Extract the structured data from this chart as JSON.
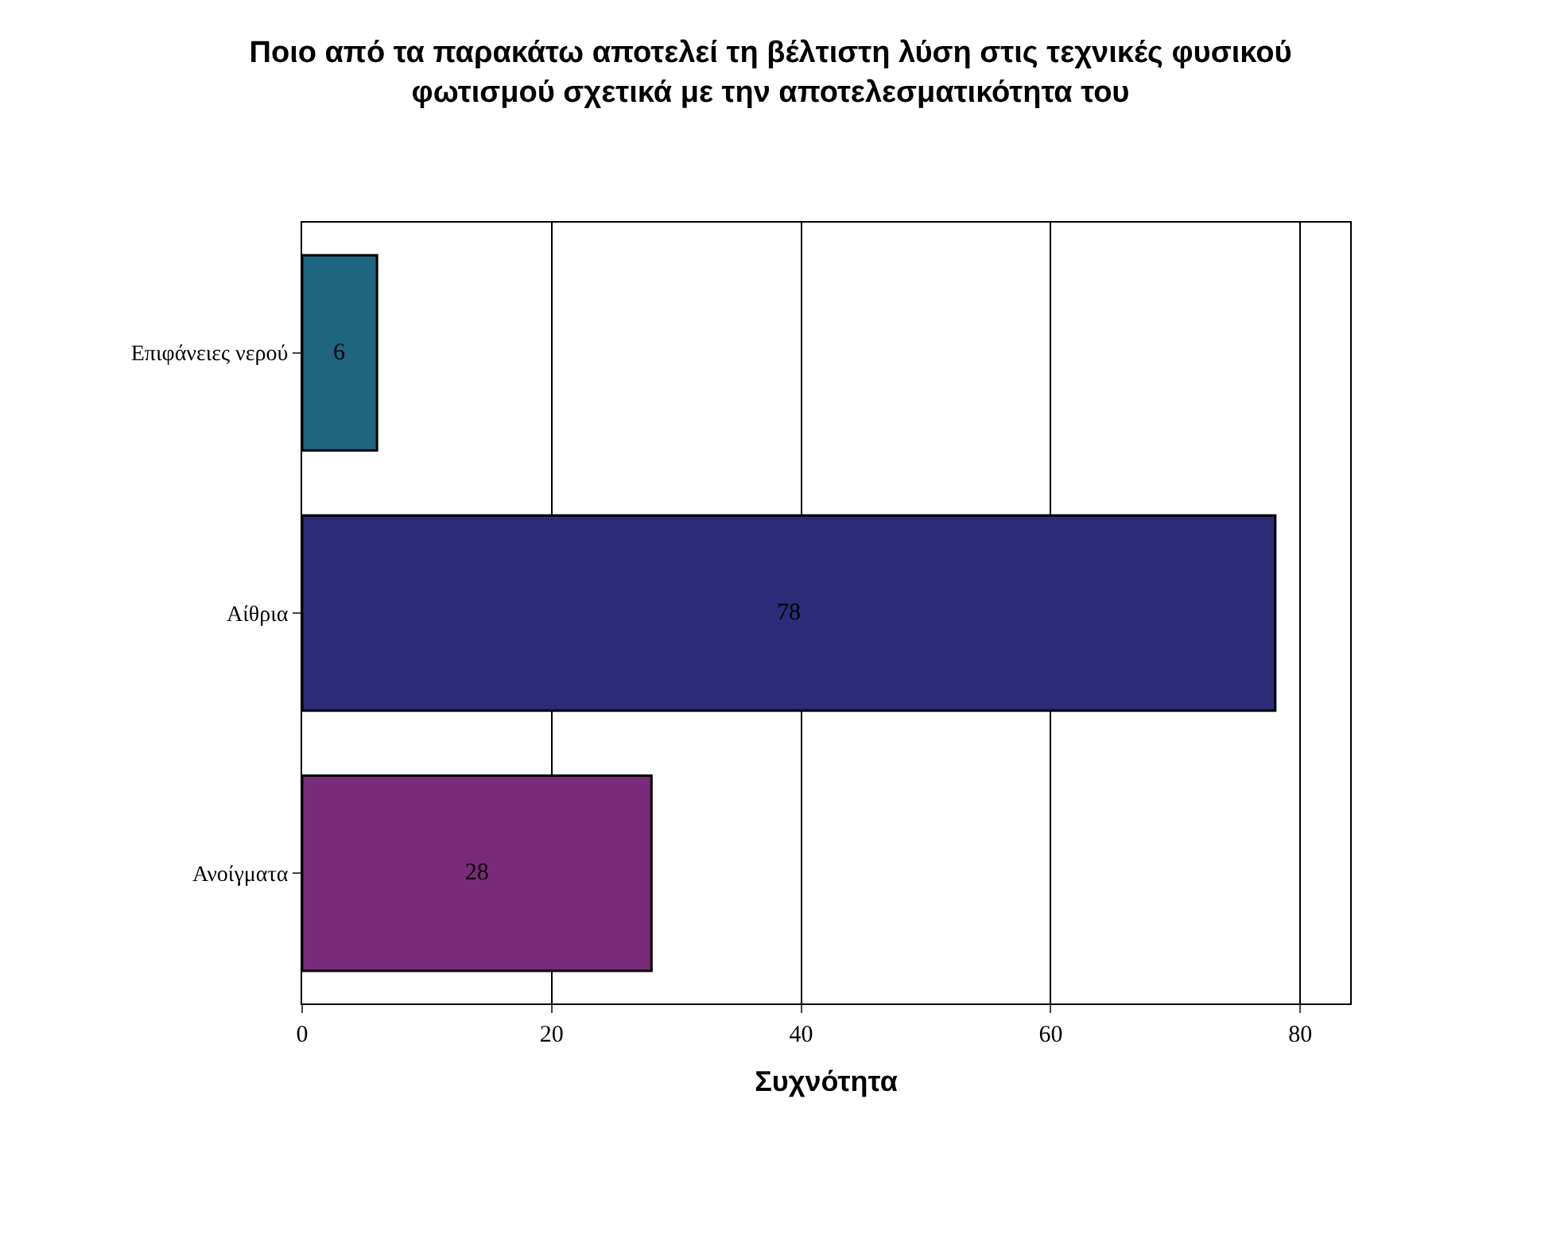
{
  "chart_data": {
    "type": "bar",
    "orientation": "horizontal",
    "title": "Ποιο από τα παρακάτω αποτελεί τη βέλτιστη λύση στις τεχνικές φυσικού\nφωτισμού σχετικά με την αποτελεσματικότητα του",
    "xlabel": "Συχνότητα",
    "categories": [
      "Επιφάνειες νερού",
      "Αίθρια",
      "Ανοίγματα"
    ],
    "values": [
      6,
      78,
      28
    ],
    "colors": [
      "#1e6680",
      "#2b2b77",
      "#7a2a7a"
    ],
    "xlim": [
      0,
      84
    ],
    "xticks": [
      0,
      20,
      40,
      60,
      80
    ],
    "grid": "x",
    "data_labels": true,
    "legend": false
  }
}
